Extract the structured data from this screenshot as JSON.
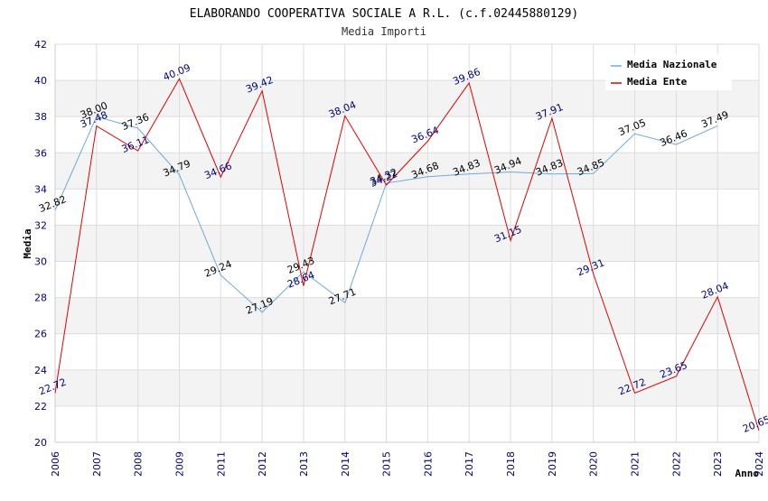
{
  "chart_data": {
    "type": "line",
    "title": "ELABORANDO COOPERATIVA SOCIALE A R.L. (c.f.02445880129)",
    "subtitle": "Media Importi",
    "xlabel": "Anno",
    "ylabel": "Media",
    "ylim": [
      20,
      42
    ],
    "y_ticks": [
      20,
      22,
      24,
      26,
      28,
      30,
      32,
      34,
      36,
      38,
      40,
      42
    ],
    "grid": true,
    "legend_position": "top-right",
    "x": [
      "2006",
      "2007",
      "2008",
      "2009",
      "2011",
      "2012",
      "2013",
      "2014",
      "2015",
      "2016",
      "2017",
      "2018",
      "2019",
      "2020",
      "2021",
      "2022",
      "2023",
      "2024"
    ],
    "series": [
      {
        "name": "Media Nazionale",
        "color": "#6fa8dc",
        "values": [
          32.82,
          38.0,
          37.36,
          34.79,
          29.24,
          27.19,
          29.43,
          27.71,
          34.32,
          34.68,
          34.83,
          34.94,
          34.83,
          34.85,
          37.05,
          36.46,
          37.49,
          null
        ],
        "labels": [
          "32.82",
          "38.00",
          "37.36",
          "34.79",
          "29.24",
          "27.19",
          "29.43",
          "27.71",
          "34.32",
          "34.68",
          "34.83",
          "34.94",
          "34.83",
          "34.85",
          "37.05",
          "36.46",
          "37.49",
          ""
        ]
      },
      {
        "name": "Media Ente",
        "color": "#e00000",
        "values": [
          22.72,
          37.48,
          36.11,
          40.09,
          34.66,
          39.42,
          28.64,
          38.04,
          34.22,
          36.64,
          39.86,
          31.15,
          37.91,
          29.31,
          22.72,
          23.65,
          28.04,
          20.65
        ],
        "labels": [
          "22.72",
          "37.48",
          "36.11",
          "40.09",
          "34.66",
          "39.42",
          "28.64",
          "38.04",
          "34.22",
          "36.64",
          "39.86",
          "31.15",
          "37.91",
          "29.31",
          "22.72",
          "23.65",
          "28.04",
          "20.65"
        ]
      }
    ]
  }
}
